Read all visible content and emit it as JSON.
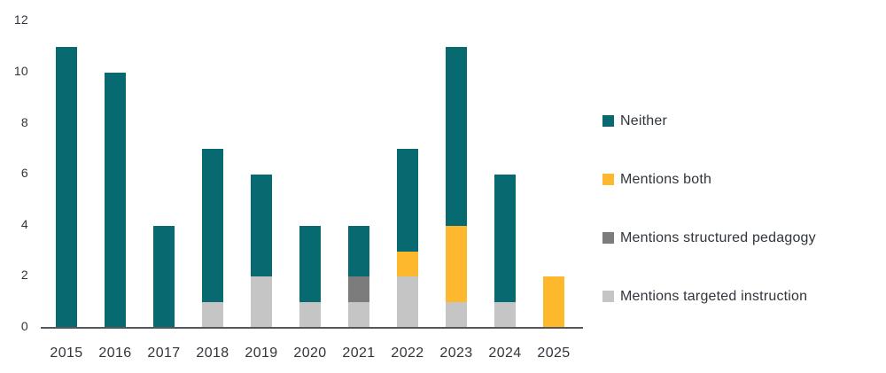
{
  "chart_data": {
    "type": "bar",
    "stacked": true,
    "title": "",
    "xlabel": "",
    "ylabel": "",
    "categories": [
      "2015",
      "2016",
      "2017",
      "2018",
      "2019",
      "2020",
      "2021",
      "2022",
      "2023",
      "2024",
      "2025"
    ],
    "series": [
      {
        "name": "Mentions targeted instruction",
        "color": "#c5c5c5",
        "values": [
          0,
          0,
          0,
          1,
          2,
          1,
          1,
          2,
          1,
          1,
          0
        ]
      },
      {
        "name": "Mentions structured pedagogy",
        "color": "#7c7c7c",
        "values": [
          0,
          0,
          0,
          0,
          0,
          0,
          1,
          0,
          0,
          0,
          0
        ]
      },
      {
        "name": "Mentions both",
        "color": "#feb82e",
        "values": [
          0,
          0,
          0,
          0,
          0,
          0,
          0,
          1,
          3,
          0,
          2
        ]
      },
      {
        "name": "Neither",
        "color": "#076a70",
        "values": [
          11,
          10,
          4,
          6,
          4,
          3,
          2,
          4,
          7,
          5,
          0
        ]
      }
    ],
    "totals": [
      11,
      10,
      4,
      7,
      6,
      4,
      4,
      7,
      11,
      6,
      2
    ],
    "y_ticks": [
      0,
      2,
      4,
      6,
      8,
      10,
      12
    ],
    "ylim": [
      0,
      12
    ],
    "grid": false,
    "legend_position": "right",
    "legend": [
      {
        "label": "Neither",
        "color": "#076a70"
      },
      {
        "label": "Mentions both",
        "color": "#feb82e"
      },
      {
        "label": "Mentions structured pedagogy",
        "color": "#7c7c7c"
      },
      {
        "label": "Mentions targeted instruction",
        "color": "#c5c5c5"
      }
    ]
  },
  "colors": {
    "text": "#2f353b",
    "axis_line": "#54575b",
    "background": "#ffffff"
  }
}
